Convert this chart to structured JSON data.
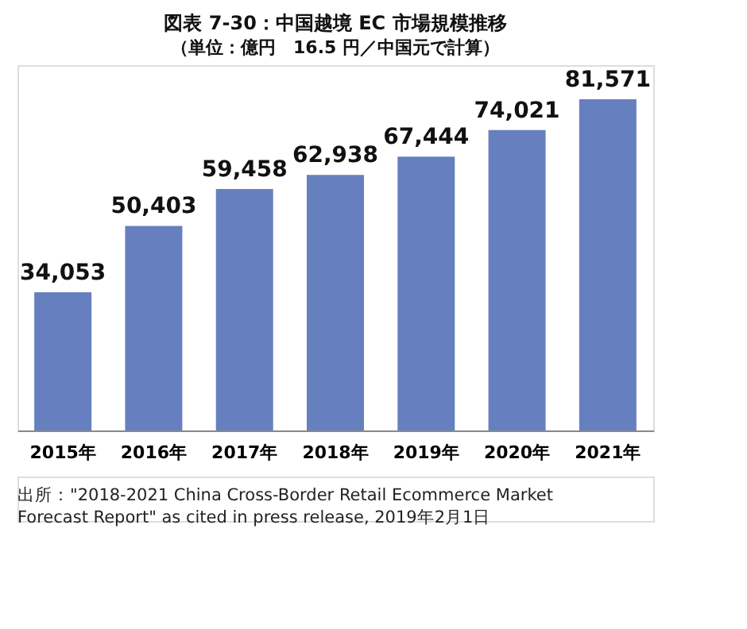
{
  "chart_data": {
    "type": "bar",
    "title": "図表 7-30：中国越境 EC 市場規模推移",
    "subtitle": "（単位：億円　16.5 円／中国元で計算）",
    "categories": [
      "2015年",
      "2016年",
      "2017年",
      "2018年",
      "2019年",
      "2020年",
      "2021年"
    ],
    "values": [
      34053,
      50403,
      59458,
      62938,
      67444,
      74021,
      81571
    ],
    "color": "#6680bf",
    "value_labels": [
      "34,053",
      "50,403",
      "59,458",
      "62,938",
      "67,444",
      "74,021",
      "81,571"
    ],
    "annotations": [
      "出所：\"2018-2021 China Cross-Border Retail Ecommerce Market Forecast Report\" as cited in press release, 2019年2月1日"
    ]
  }
}
